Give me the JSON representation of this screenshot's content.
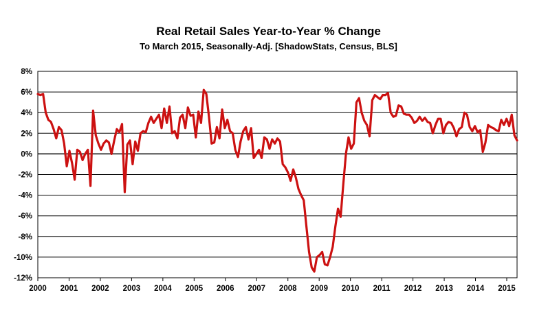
{
  "chart_data": {
    "type": "line",
    "title": "Real Retail Sales Year-to-Year %  Change",
    "subtitle": "To March 2015, Seasonally-Adj. [ShadowStats, Census, BLS]",
    "xlabel": "",
    "ylabel": "",
    "ylim": [
      -12,
      8
    ],
    "xlim": [
      2000,
      2015.33
    ],
    "y_ticks": [
      "8%",
      "6%",
      "4%",
      "2%",
      "0%",
      "-2%",
      "-4%",
      "-6%",
      "-8%",
      "-10%",
      "-12%"
    ],
    "x_ticks": [
      "2000",
      "2001",
      "2002",
      "2003",
      "2004",
      "2005",
      "2006",
      "2007",
      "2008",
      "2009",
      "2010",
      "2011",
      "2012",
      "2013",
      "2014",
      "2015"
    ],
    "grid": "horizontal",
    "line_color": "#cc1111",
    "series": [
      {
        "values": [
          5.8,
          5.7,
          5.8,
          4.0,
          3.3,
          3.1,
          2.4,
          1.5,
          2.6,
          2.3,
          1.0,
          -1.2,
          0.3,
          -0.9,
          -2.5,
          0.4,
          0.2,
          -0.6,
          0.0,
          0.4,
          -3.1,
          4.2,
          1.8,
          1.0,
          0.4,
          1.0,
          1.3,
          1.1,
          0.0,
          1.3,
          2.4,
          2.1,
          2.9,
          -3.7,
          0.9,
          1.3,
          -1.0,
          1.2,
          0.3,
          2.0,
          2.2,
          2.1,
          3.0,
          3.6,
          3.0,
          3.4,
          3.8,
          2.5,
          4.4,
          3.0,
          4.6,
          2.0,
          2.2,
          1.5,
          3.5,
          3.8,
          2.5,
          4.5,
          3.7,
          3.8,
          1.6,
          4.1,
          3.0,
          6.2,
          5.8,
          3.6,
          1.0,
          1.1,
          2.6,
          1.5,
          4.3,
          2.5,
          3.3,
          2.2,
          2.0,
          0.4,
          -0.3,
          1.2,
          2.2,
          2.6,
          1.4,
          2.5,
          -0.4,
          0.0,
          0.4,
          -0.4,
          1.6,
          1.4,
          0.5,
          1.4,
          1.0,
          1.5,
          1.2,
          -1.0,
          -1.3,
          -1.8,
          -2.6,
          -1.5,
          -2.3,
          -3.4,
          -4.0,
          -4.5,
          -7.0,
          -9.5,
          -11.0,
          -11.4,
          -10.0,
          -9.8,
          -9.5,
          -10.7,
          -10.8,
          -10.0,
          -9.0,
          -7.0,
          -5.3,
          -6.1,
          -3.0,
          0.0,
          1.6,
          0.5,
          1.0,
          5.0,
          5.4,
          4.0,
          3.2,
          2.8,
          1.7,
          5.2,
          5.7,
          5.5,
          5.3,
          5.7,
          5.7,
          5.9,
          4.0,
          3.6,
          3.7,
          4.7,
          4.6,
          3.9,
          3.8,
          3.8,
          3.5,
          3.0,
          3.2,
          3.6,
          3.2,
          3.5,
          3.1,
          3.0,
          2.0,
          2.8,
          3.4,
          3.4,
          2.0,
          2.8,
          3.1,
          3.0,
          2.5,
          1.7,
          2.4,
          2.6,
          4.0,
          3.8,
          2.6,
          2.2,
          2.7,
          2.1,
          2.3,
          0.2,
          1.1,
          2.8,
          2.6,
          2.5,
          2.3,
          2.2,
          3.3,
          2.8,
          3.4,
          2.7,
          3.8,
          1.8,
          1.3
        ]
      }
    ]
  }
}
